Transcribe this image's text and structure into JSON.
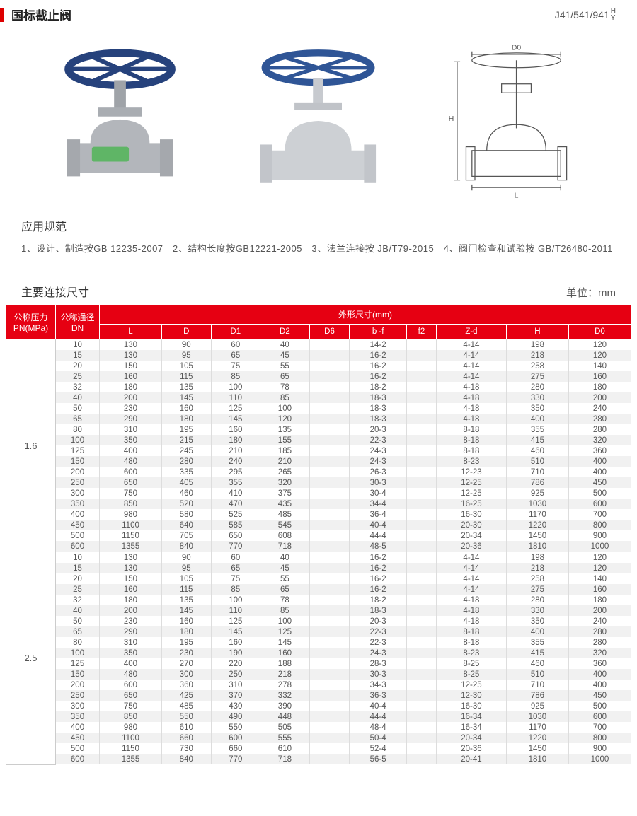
{
  "title": "国标截止阀",
  "model_code": "J41/541/941",
  "model_suffix_top": "H",
  "model_suffix_bot": "Y",
  "spec_heading": "应用规范",
  "spec_text": "1、设计、制造按GB 12235-2007　2、结构长度按GB12221-2005　3、法兰连接按 JB/T79-2015　4、阀门检查和试验按 GB/T26480-2011",
  "table_heading": "主要连接尺寸",
  "unit_label": "单位：mm",
  "diagram_labels": {
    "D0": "D0",
    "H": "H",
    "L": "L"
  },
  "colors": {
    "header_red": "#e60012",
    "marker_red": "#d00",
    "zebra": "#f1f1f1",
    "text": "#555",
    "valve_blue": "#2c4f8f",
    "valve_grey": "#b9bcc0"
  },
  "columns_top": [
    "公称压力\nPN(MPa)",
    "公称通径\nDN",
    "外形尺寸(mm)"
  ],
  "columns_sub": [
    "L",
    "D",
    "D1",
    "D2",
    "D6",
    "b -f",
    "f2",
    "Z-d",
    "H",
    "D0"
  ],
  "groups": [
    {
      "pressure": "1.6",
      "rows": [
        [
          "10",
          "130",
          "90",
          "60",
          "40",
          "",
          "14-2",
          "",
          "4-14",
          "198",
          "120"
        ],
        [
          "15",
          "130",
          "95",
          "65",
          "45",
          "",
          "16-2",
          "",
          "4-14",
          "218",
          "120"
        ],
        [
          "20",
          "150",
          "105",
          "75",
          "55",
          "",
          "16-2",
          "",
          "4-14",
          "258",
          "140"
        ],
        [
          "25",
          "160",
          "115",
          "85",
          "65",
          "",
          "16-2",
          "",
          "4-14",
          "275",
          "160"
        ],
        [
          "32",
          "180",
          "135",
          "100",
          "78",
          "",
          "18-2",
          "",
          "4-18",
          "280",
          "180"
        ],
        [
          "40",
          "200",
          "145",
          "110",
          "85",
          "",
          "18-3",
          "",
          "4-18",
          "330",
          "200"
        ],
        [
          "50",
          "230",
          "160",
          "125",
          "100",
          "",
          "18-3",
          "",
          "4-18",
          "350",
          "240"
        ],
        [
          "65",
          "290",
          "180",
          "145",
          "120",
          "",
          "18-3",
          "",
          "4-18",
          "400",
          "280"
        ],
        [
          "80",
          "310",
          "195",
          "160",
          "135",
          "",
          "20-3",
          "",
          "8-18",
          "355",
          "280"
        ],
        [
          "100",
          "350",
          "215",
          "180",
          "155",
          "",
          "22-3",
          "",
          "8-18",
          "415",
          "320"
        ],
        [
          "125",
          "400",
          "245",
          "210",
          "185",
          "",
          "24-3",
          "",
          "8-18",
          "460",
          "360"
        ],
        [
          "150",
          "480",
          "280",
          "240",
          "210",
          "",
          "24-3",
          "",
          "8-23",
          "510",
          "400"
        ],
        [
          "200",
          "600",
          "335",
          "295",
          "265",
          "",
          "26-3",
          "",
          "12-23",
          "710",
          "400"
        ],
        [
          "250",
          "650",
          "405",
          "355",
          "320",
          "",
          "30-3",
          "",
          "12-25",
          "786",
          "450"
        ],
        [
          "300",
          "750",
          "460",
          "410",
          "375",
          "",
          "30-4",
          "",
          "12-25",
          "925",
          "500"
        ],
        [
          "350",
          "850",
          "520",
          "470",
          "435",
          "",
          "34-4",
          "",
          "16-25",
          "1030",
          "600"
        ],
        [
          "400",
          "980",
          "580",
          "525",
          "485",
          "",
          "36-4",
          "",
          "16-30",
          "1170",
          "700"
        ],
        [
          "450",
          "1100",
          "640",
          "585",
          "545",
          "",
          "40-4",
          "",
          "20-30",
          "1220",
          "800"
        ],
        [
          "500",
          "1150",
          "705",
          "650",
          "608",
          "",
          "44-4",
          "",
          "20-34",
          "1450",
          "900"
        ],
        [
          "600",
          "1355",
          "840",
          "770",
          "718",
          "",
          "48-5",
          "",
          "20-36",
          "1810",
          "1000"
        ]
      ]
    },
    {
      "pressure": "2.5",
      "rows": [
        [
          "10",
          "130",
          "90",
          "60",
          "40",
          "",
          "16-2",
          "",
          "4-14",
          "198",
          "120"
        ],
        [
          "15",
          "130",
          "95",
          "65",
          "45",
          "",
          "16-2",
          "",
          "4-14",
          "218",
          "120"
        ],
        [
          "20",
          "150",
          "105",
          "75",
          "55",
          "",
          "16-2",
          "",
          "4-14",
          "258",
          "140"
        ],
        [
          "25",
          "160",
          "115",
          "85",
          "65",
          "",
          "16-2",
          "",
          "4-14",
          "275",
          "160"
        ],
        [
          "32",
          "180",
          "135",
          "100",
          "78",
          "",
          "18-2",
          "",
          "4-18",
          "280",
          "180"
        ],
        [
          "40",
          "200",
          "145",
          "110",
          "85",
          "",
          "18-3",
          "",
          "4-18",
          "330",
          "200"
        ],
        [
          "50",
          "230",
          "160",
          "125",
          "100",
          "",
          "20-3",
          "",
          "4-18",
          "350",
          "240"
        ],
        [
          "65",
          "290",
          "180",
          "145",
          "125",
          "",
          "22-3",
          "",
          "8-18",
          "400",
          "280"
        ],
        [
          "80",
          "310",
          "195",
          "160",
          "145",
          "",
          "22-3",
          "",
          "8-18",
          "355",
          "280"
        ],
        [
          "100",
          "350",
          "230",
          "190",
          "160",
          "",
          "24-3",
          "",
          "8-23",
          "415",
          "320"
        ],
        [
          "125",
          "400",
          "270",
          "220",
          "188",
          "",
          "28-3",
          "",
          "8-25",
          "460",
          "360"
        ],
        [
          "150",
          "480",
          "300",
          "250",
          "218",
          "",
          "30-3",
          "",
          "8-25",
          "510",
          "400"
        ],
        [
          "200",
          "600",
          "360",
          "310",
          "278",
          "",
          "34-3",
          "",
          "12-25",
          "710",
          "400"
        ],
        [
          "250",
          "650",
          "425",
          "370",
          "332",
          "",
          "36-3",
          "",
          "12-30",
          "786",
          "450"
        ],
        [
          "300",
          "750",
          "485",
          "430",
          "390",
          "",
          "40-4",
          "",
          "16-30",
          "925",
          "500"
        ],
        [
          "350",
          "850",
          "550",
          "490",
          "448",
          "",
          "44-4",
          "",
          "16-34",
          "1030",
          "600"
        ],
        [
          "400",
          "980",
          "610",
          "550",
          "505",
          "",
          "48-4",
          "",
          "16-34",
          "1170",
          "700"
        ],
        [
          "450",
          "1100",
          "660",
          "600",
          "555",
          "",
          "50-4",
          "",
          "20-34",
          "1220",
          "800"
        ],
        [
          "500",
          "1150",
          "730",
          "660",
          "610",
          "",
          "52-4",
          "",
          "20-36",
          "1450",
          "900"
        ],
        [
          "600",
          "1355",
          "840",
          "770",
          "718",
          "",
          "56-5",
          "",
          "20-41",
          "1810",
          "1000"
        ]
      ]
    }
  ]
}
